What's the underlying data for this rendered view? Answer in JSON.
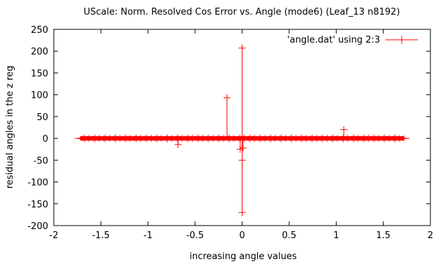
{
  "chart_data": {
    "type": "line",
    "title": "UScale: Norm. Resolved Cos Error vs. Angle (mode6) (Leaf_13 n8192)",
    "xlabel": "increasing angle values",
    "ylabel": "residual angles in the z reg",
    "xlim": [
      -2,
      2
    ],
    "ylim": [
      -200,
      250
    ],
    "x_ticks": [
      -2,
      -1.5,
      -1,
      -0.5,
      0,
      0.5,
      1,
      1.5,
      2
    ],
    "x_tick_labels": [
      "-2",
      "-1.5",
      "-1",
      "-0.5",
      "0",
      "0.5",
      "1",
      "1.5",
      "2"
    ],
    "y_ticks": [
      -200,
      -150,
      -100,
      -50,
      0,
      50,
      100,
      150,
      200,
      250
    ],
    "y_tick_labels": [
      "-200",
      "-150",
      "-100",
      "-50",
      "0",
      "50",
      "100",
      "150",
      "200",
      "250"
    ],
    "grid": false,
    "legend_position": "top-right",
    "series": [
      {
        "name": "'angle.dat' using 2:3",
        "color": "#ff0000",
        "marker": "plus",
        "band": {
          "x_range": [
            -1.72,
            1.72
          ],
          "y_range": [
            -5,
            5
          ]
        },
        "endpoints": [
          {
            "x": -1.75,
            "y": 0
          },
          {
            "x": 1.75,
            "y": 0
          }
        ],
        "spikes": [
          {
            "x": -0.68,
            "y": -14
          },
          {
            "x": -0.16,
            "y": 93
          },
          {
            "x": -0.02,
            "y": -25
          },
          {
            "x": 0.0,
            "y": 207
          },
          {
            "x": 0.0,
            "y": -170
          },
          {
            "x": 0.0,
            "y": -50
          },
          {
            "x": 0.01,
            "y": -22
          },
          {
            "x": 1.08,
            "y": 20
          }
        ]
      }
    ]
  }
}
